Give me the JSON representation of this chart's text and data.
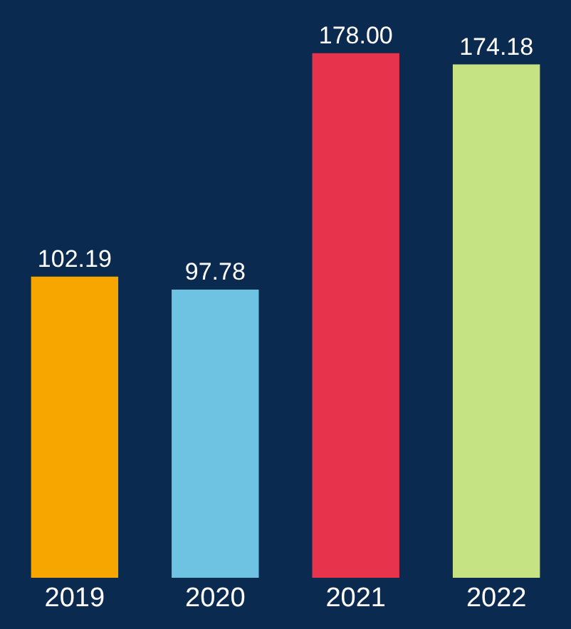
{
  "chart_data": {
    "type": "bar",
    "categories": [
      "2019",
      "2020",
      "2021",
      "2022"
    ],
    "values": [
      102.19,
      97.78,
      178.0,
      174.18
    ],
    "colors": [
      "#f7a600",
      "#6ec3e3",
      "#e8334c",
      "#c6e383"
    ],
    "value_labels": [
      "102.19",
      "97.78",
      "178.00",
      "174.18"
    ]
  }
}
